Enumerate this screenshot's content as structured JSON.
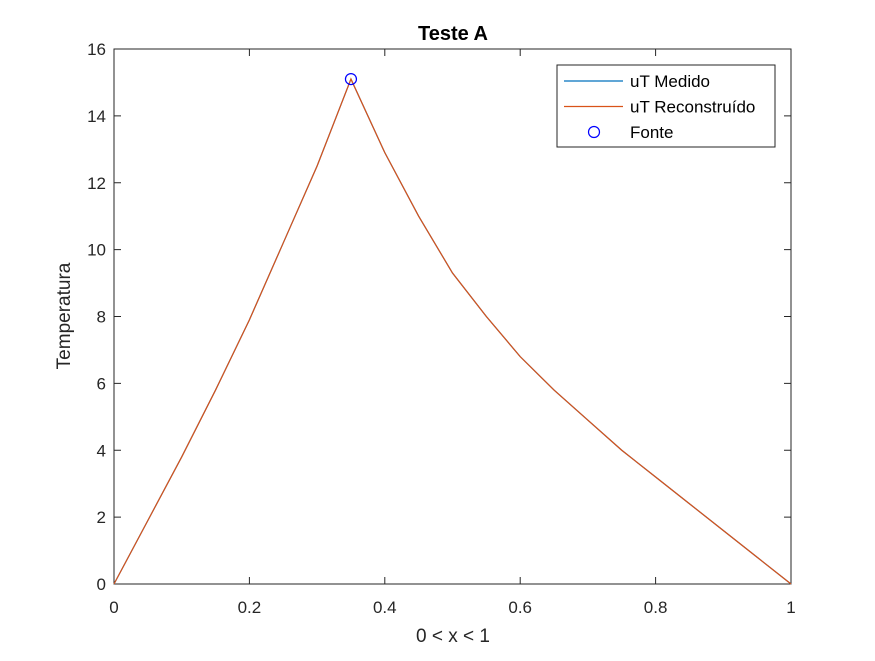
{
  "chart_data": {
    "type": "line",
    "title": "Teste A",
    "xlabel": "0 < x < 1",
    "ylabel": "Temperatura",
    "xlim": [
      0,
      1
    ],
    "ylim": [
      0,
      16
    ],
    "xticks": [
      0,
      0.2,
      0.4,
      0.6,
      0.8,
      1
    ],
    "xtick_labels": [
      "0",
      "0.2",
      "0.4",
      "0.6",
      "0.8",
      "1"
    ],
    "yticks": [
      0,
      2,
      4,
      6,
      8,
      10,
      12,
      14,
      16
    ],
    "ytick_labels": [
      "0",
      "2",
      "4",
      "6",
      "8",
      "10",
      "12",
      "14",
      "16"
    ],
    "grid": false,
    "legend_position": "top-right",
    "series": [
      {
        "name": "uT Medido",
        "kind": "line",
        "color": "#0072BD",
        "x": [
          0,
          0.05,
          0.1,
          0.15,
          0.2,
          0.25,
          0.3,
          0.35,
          0.4,
          0.45,
          0.5,
          0.55,
          0.6,
          0.65,
          0.7,
          0.75,
          0.8,
          0.85,
          0.9,
          0.95,
          1
        ],
        "y": [
          0,
          1.9,
          3.8,
          5.8,
          7.9,
          10.2,
          12.5,
          15.1,
          12.9,
          11.0,
          9.3,
          8.0,
          6.8,
          5.8,
          4.9,
          4.0,
          3.2,
          2.4,
          1.6,
          0.8,
          0
        ]
      },
      {
        "name": "uT Reconstruído",
        "kind": "line",
        "color": "#D95319",
        "x": [
          0,
          0.05,
          0.1,
          0.15,
          0.2,
          0.25,
          0.3,
          0.35,
          0.4,
          0.45,
          0.5,
          0.55,
          0.6,
          0.65,
          0.7,
          0.75,
          0.8,
          0.85,
          0.9,
          0.95,
          1
        ],
        "y": [
          0,
          1.9,
          3.8,
          5.8,
          7.9,
          10.2,
          12.5,
          15.1,
          12.9,
          11.0,
          9.3,
          8.0,
          6.8,
          5.8,
          4.9,
          4.0,
          3.2,
          2.4,
          1.6,
          0.8,
          0
        ]
      },
      {
        "name": "Fonte",
        "kind": "marker",
        "color": "#0000FF",
        "x": [
          0.35
        ],
        "y": [
          15.1
        ]
      }
    ]
  }
}
